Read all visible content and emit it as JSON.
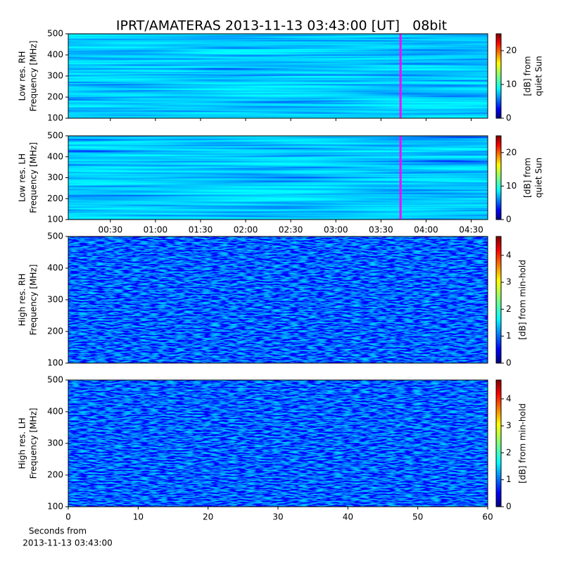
{
  "title": "IPRT/AMATERAS 2013-11-13 03:43:00 [UT]   08bit",
  "xlabel": [
    "Seconds from",
    "2013-11-13 03:43:00"
  ],
  "chart_data": [
    {
      "type": "heatmap",
      "ylabel": [
        "Low res. RH",
        "Frequency [MHz]"
      ],
      "ylim": [
        100,
        500
      ],
      "yticks": [
        100,
        200,
        300,
        400,
        500
      ],
      "xlim": [
        2,
        281
      ],
      "marker_x": 223,
      "marker_color": "#ff00ff",
      "colorbar": {
        "label": [
          "[dB] from",
          "quiet Sun"
        ],
        "lim": [
          0,
          25
        ],
        "ticks": [
          0,
          10,
          20
        ]
      }
    },
    {
      "type": "heatmap",
      "ylabel": [
        "Low res. LH",
        "Frequency [MHz]"
      ],
      "ylim": [
        100,
        500
      ],
      "yticks": [
        100,
        200,
        300,
        400,
        500
      ],
      "xlim": [
        2,
        281
      ],
      "xticks": [
        {
          "value": 30,
          "label": "00:30"
        },
        {
          "value": 60,
          "label": "01:00"
        },
        {
          "value": 90,
          "label": "01:30"
        },
        {
          "value": 120,
          "label": "02:00"
        },
        {
          "value": 150,
          "label": "02:30"
        },
        {
          "value": 180,
          "label": "03:00"
        },
        {
          "value": 210,
          "label": "03:30"
        },
        {
          "value": 240,
          "label": "04:00"
        },
        {
          "value": 270,
          "label": "04:30"
        }
      ],
      "marker_x": 223,
      "marker_color": "#ff00ff",
      "colorbar": {
        "label": [
          "[dB] from",
          "quiet Sun"
        ],
        "lim": [
          0,
          25
        ],
        "ticks": [
          0,
          10,
          20
        ]
      }
    },
    {
      "type": "heatmap",
      "ylabel": [
        "High res. RH",
        "Frequency [MHz]"
      ],
      "ylim": [
        100,
        500
      ],
      "yticks": [
        100,
        200,
        300,
        400,
        500
      ],
      "xlim": [
        0,
        60
      ],
      "colorbar": {
        "label": [
          "[dB] from min-hold"
        ],
        "lim": [
          0,
          4.7
        ],
        "ticks": [
          0,
          1,
          2,
          3,
          4
        ]
      }
    },
    {
      "type": "heatmap",
      "ylabel": [
        "High res. LH",
        "Frequency [MHz]"
      ],
      "ylim": [
        100,
        500
      ],
      "yticks": [
        100,
        200,
        300,
        400,
        500
      ],
      "xlim": [
        0,
        60
      ],
      "xticks": [
        0,
        10,
        20,
        30,
        40,
        50,
        60
      ],
      "colorbar": {
        "label": [
          "[dB] from min-hold"
        ],
        "lim": [
          0,
          4.7
        ],
        "ticks": [
          0,
          1,
          2,
          3,
          4
        ]
      }
    }
  ]
}
